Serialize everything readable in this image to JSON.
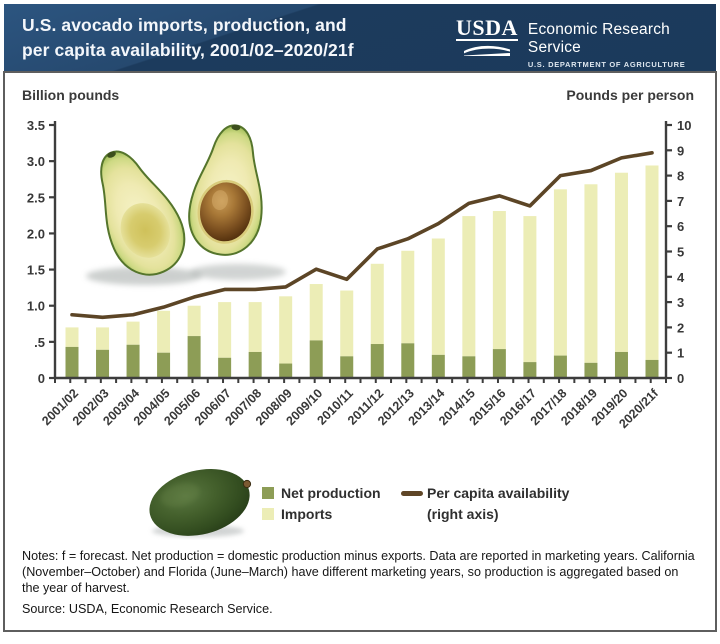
{
  "header": {
    "title_line1": "U.S. avocado imports, production, and",
    "title_line2": "per capita availability, 2001/02–2020/21f",
    "logo": {
      "acronym": "USDA",
      "agency": "Economic Research Service",
      "department": "U.S. DEPARTMENT OF AGRICULTURE"
    }
  },
  "chart": {
    "left_axis_label": "Billion pounds",
    "right_axis_label": "Pounds per person"
  },
  "legend": {
    "net_production": "Net production",
    "imports": "Imports",
    "line_label_line1": "Per capita availability",
    "line_label_line2": "(right axis)"
  },
  "notes": "Notes:  f = forecast. Net production = domestic production minus exports. Data are reported in marketing years. California (November–October) and Florida (June–March) have different marketing years, so production is aggregated based on the year of harvest.",
  "source": "Source: USDA, Economic Research Service.",
  "colors": {
    "header_bg": "#1b3a5b",
    "header_bg_light": "#2c5580",
    "net_production_bar": "#8d9d56",
    "imports_bar": "#ecedb6",
    "availability_line": "#5c4526",
    "axis": "#3d3d3d",
    "panel_border": "#5e5e5e"
  },
  "chart_data": {
    "type": "bar+line",
    "title": "U.S. avocado imports, production, and per capita availability, 2001/02–2020/21f",
    "categories": [
      "2001/02",
      "2002/03",
      "2003/04",
      "2004/05",
      "2005/06",
      "2006/07",
      "2007/08",
      "2008/09",
      "2009/10",
      "2010/11",
      "2011/12",
      "2012/13",
      "2013/14",
      "2014/15",
      "2015/16",
      "2016/17",
      "2017/18",
      "2018/19",
      "2019/20",
      "2020/21f"
    ],
    "series": [
      {
        "name": "Net production",
        "chart": "bar",
        "stacked": true,
        "axis": "left",
        "color": "#8d9d56",
        "values": [
          0.43,
          0.39,
          0.46,
          0.35,
          0.58,
          0.28,
          0.36,
          0.2,
          0.52,
          0.3,
          0.47,
          0.48,
          0.32,
          0.3,
          0.4,
          0.22,
          0.31,
          0.21,
          0.36,
          0.25
        ]
      },
      {
        "name": "Imports",
        "chart": "bar",
        "stacked": true,
        "axis": "left",
        "color": "#ecedb6",
        "values": [
          0.27,
          0.31,
          0.32,
          0.58,
          0.42,
          0.77,
          0.69,
          0.93,
          0.78,
          0.91,
          1.11,
          1.28,
          1.61,
          1.94,
          1.91,
          2.02,
          2.3,
          2.47,
          2.48,
          2.69
        ]
      },
      {
        "name": "Per capita availability (right axis)",
        "chart": "line",
        "axis": "right",
        "color": "#5c4526",
        "values": [
          2.5,
          2.4,
          2.5,
          2.8,
          3.2,
          3.5,
          3.5,
          3.6,
          4.3,
          3.9,
          5.1,
          5.5,
          6.1,
          6.9,
          7.2,
          6.8,
          8.0,
          8.2,
          8.7,
          8.9
        ]
      }
    ],
    "left_axis": {
      "label": "Billion pounds",
      "min": 0,
      "max": 3.5,
      "tick_labels": [
        "3.5",
        "3.0",
        "2.5",
        "2.0",
        "1.5",
        "1.0",
        ".5",
        "0"
      ]
    },
    "right_axis": {
      "label": "Pounds per person",
      "min": 0,
      "max": 10,
      "tick_labels": [
        "10",
        "9",
        "8",
        "7",
        "6",
        "5",
        "4",
        "3",
        "2",
        "1",
        "0"
      ]
    },
    "grid": false,
    "legend_position": "bottom"
  }
}
